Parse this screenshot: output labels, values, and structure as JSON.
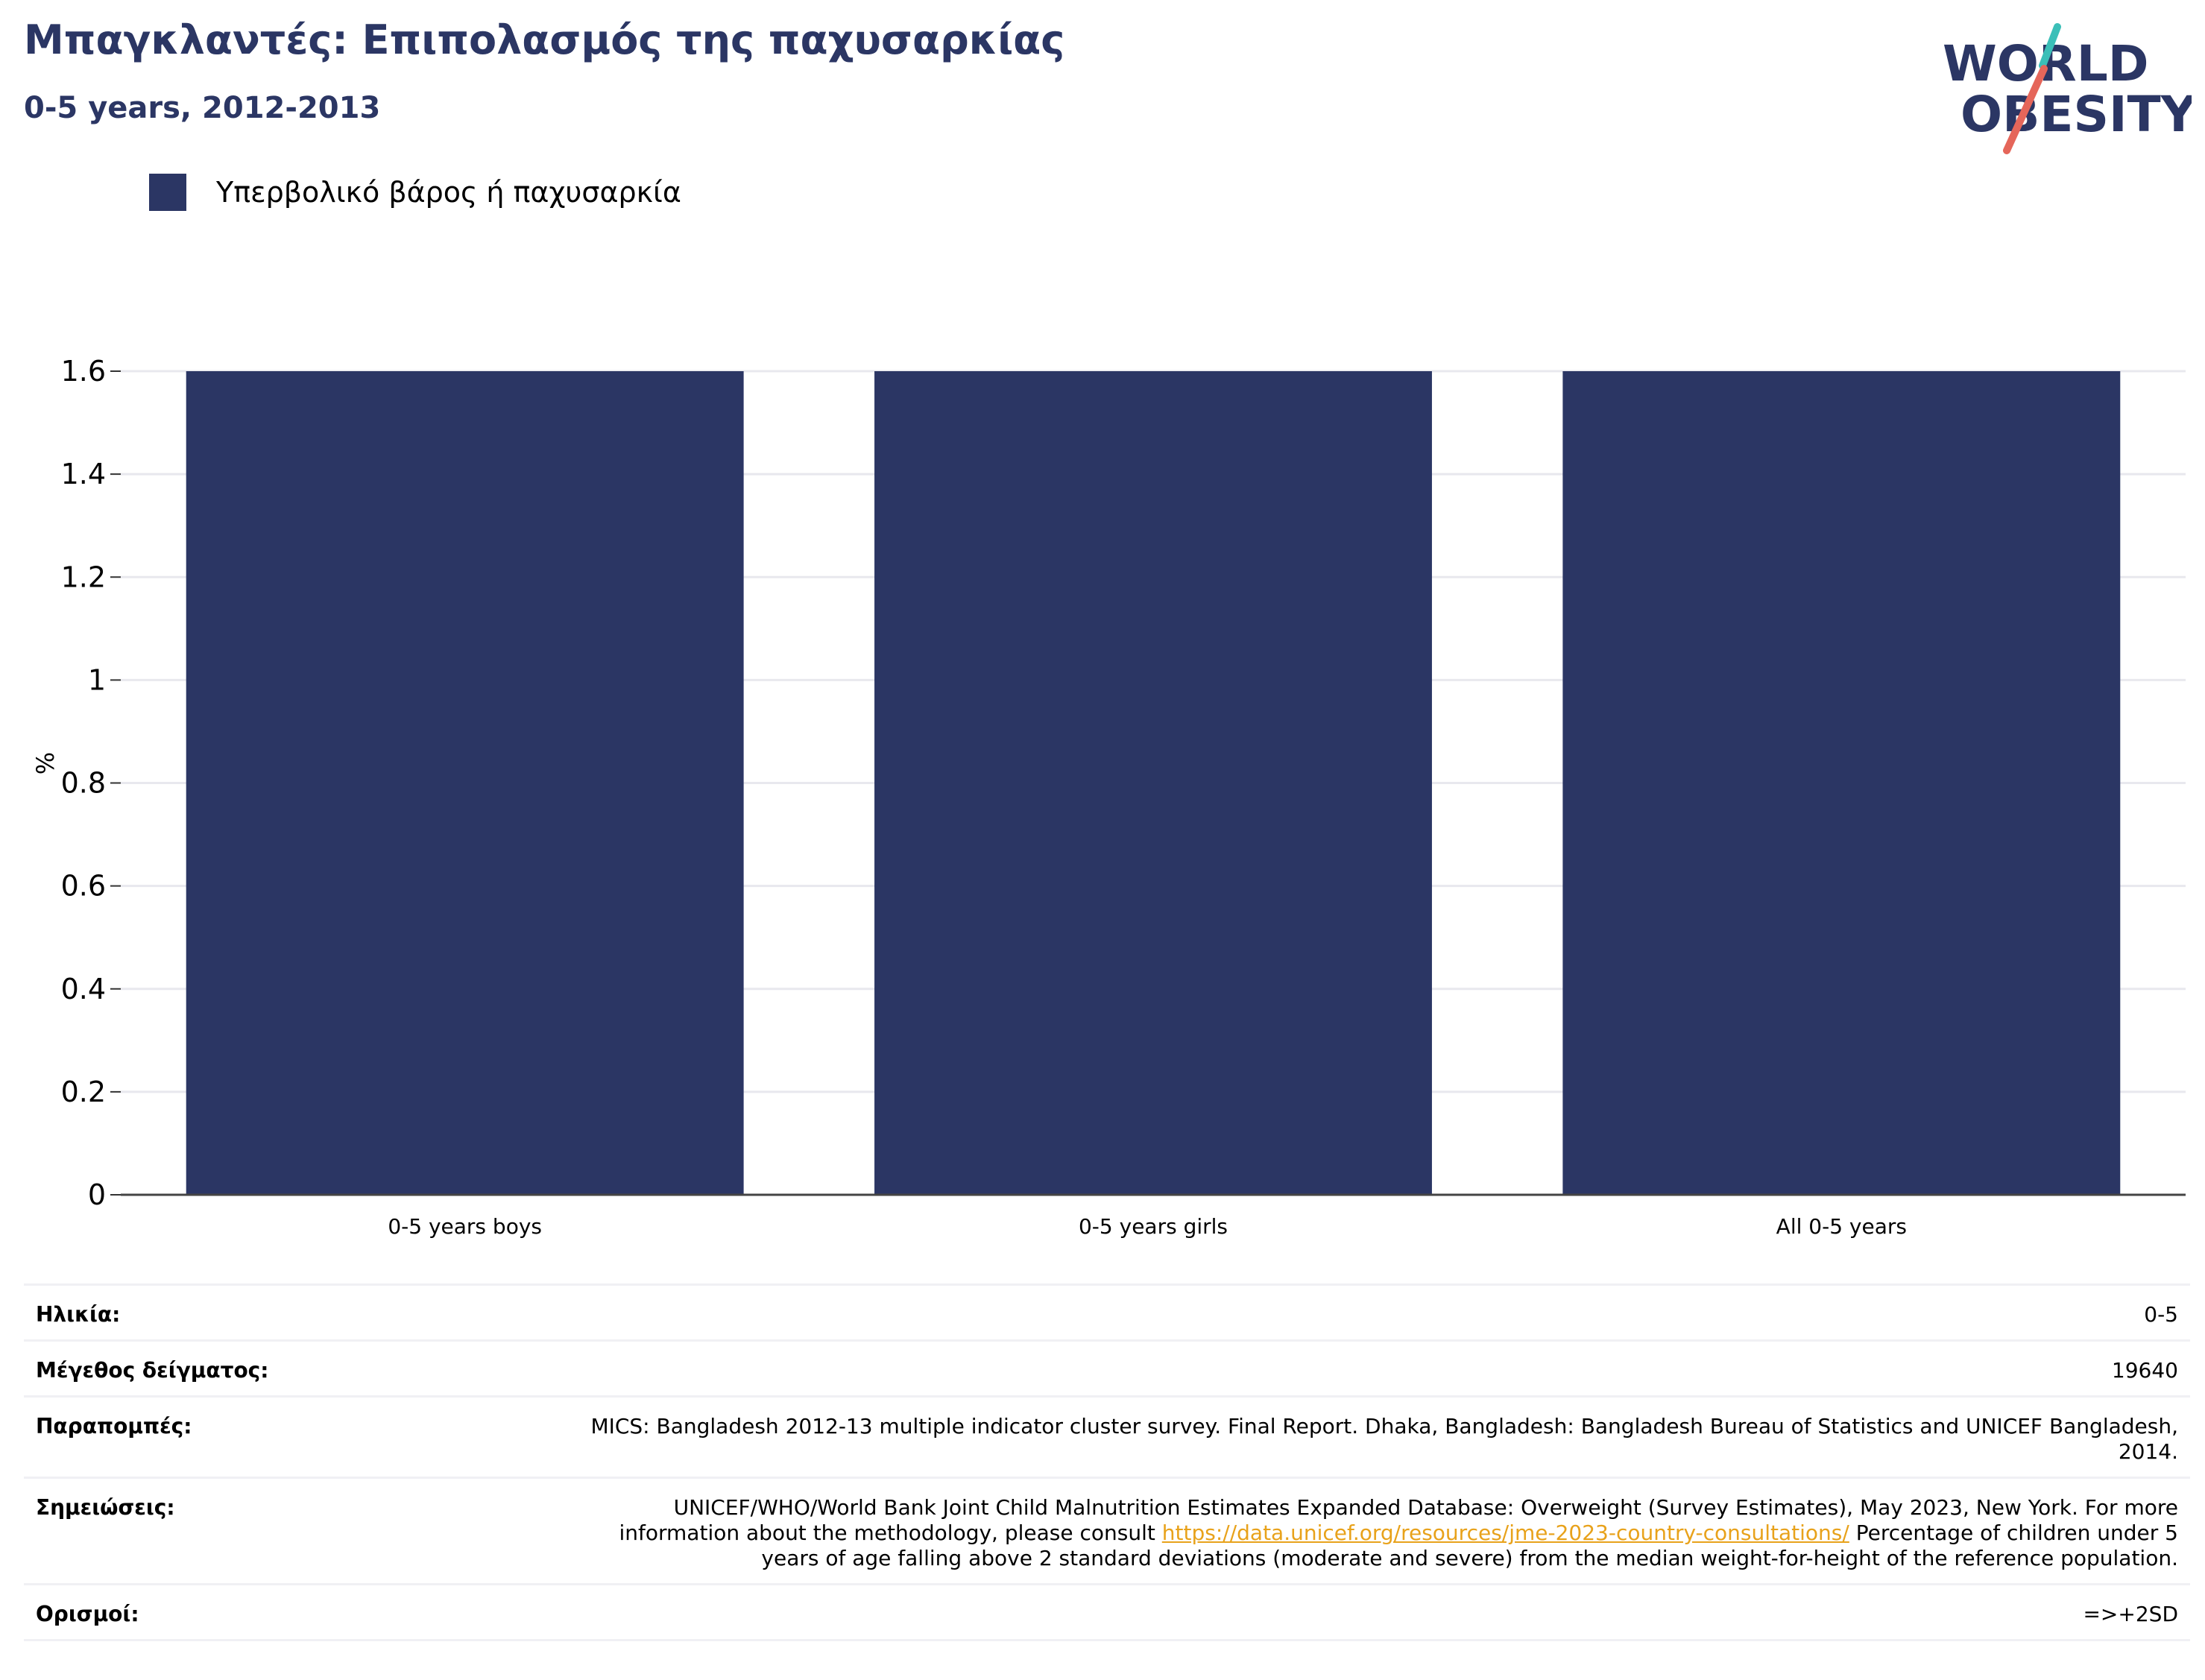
{
  "header": {
    "title": "Μπαγκλαντές: Επιπολασμός της παχυσαρκίας",
    "subtitle": "0-5 years, 2012-2013"
  },
  "logo": {
    "line1": "WORLD",
    "line2": "OBESITY",
    "colors": {
      "text": "#2b3664",
      "teal": "#3bbfb8",
      "coral": "#e5665a"
    }
  },
  "legend": {
    "label": "Υπερβολικό βάρος ή παχυσαρκία",
    "color": "#2b3664"
  },
  "chart_data": {
    "type": "bar",
    "categories": [
      "0-5 years boys",
      "0-5 years girls",
      "All 0-5 years"
    ],
    "series": [
      {
        "name": "Υπερβολικό βάρος ή παχυσαρκία",
        "values": [
          1.6,
          1.6,
          1.6
        ],
        "color": "#2b3664"
      }
    ],
    "ylabel": "%",
    "ylim": [
      0,
      1.6
    ],
    "yticks": [
      0,
      0.2,
      0.4,
      0.6,
      0.8,
      1,
      1.2,
      1.4,
      1.6
    ],
    "ytick_labels": [
      "0",
      "0.2",
      "0.4",
      "0.6",
      "0.8",
      "1",
      "1.2",
      "1.4",
      "1.6"
    ],
    "grid": true
  },
  "details": {
    "age": {
      "label": "Ηλικία:",
      "value": "0-5"
    },
    "sample": {
      "label": "Μέγεθος δείγματος:",
      "value": "19640"
    },
    "references": {
      "label": "Παραπομπές:",
      "value": "MICS: Bangladesh 2012-13 multiple indicator cluster survey. Final Report. Dhaka, Bangladesh: Bangladesh Bureau of Statistics and UNICEF Bangladesh, 2014."
    },
    "notes": {
      "label": "Σημειώσεις:",
      "text_before": "UNICEF/WHO/World Bank Joint Child Malnutrition Estimates Expanded Database: Overweight (Survey Estimates), May 2023, New York. For more information about the methodology, please consult ",
      "link": "https://data.unicef.org/resources/jme-2023-country-consultations/",
      "text_after": " Percentage of children under 5 years of age falling above 2 standard deviations (moderate and severe) from the median weight-for-height of the reference population.",
      "link_color": "#e8a21b"
    },
    "definitions": {
      "label": "Ορισμοί:",
      "value": "=>+2SD"
    }
  }
}
